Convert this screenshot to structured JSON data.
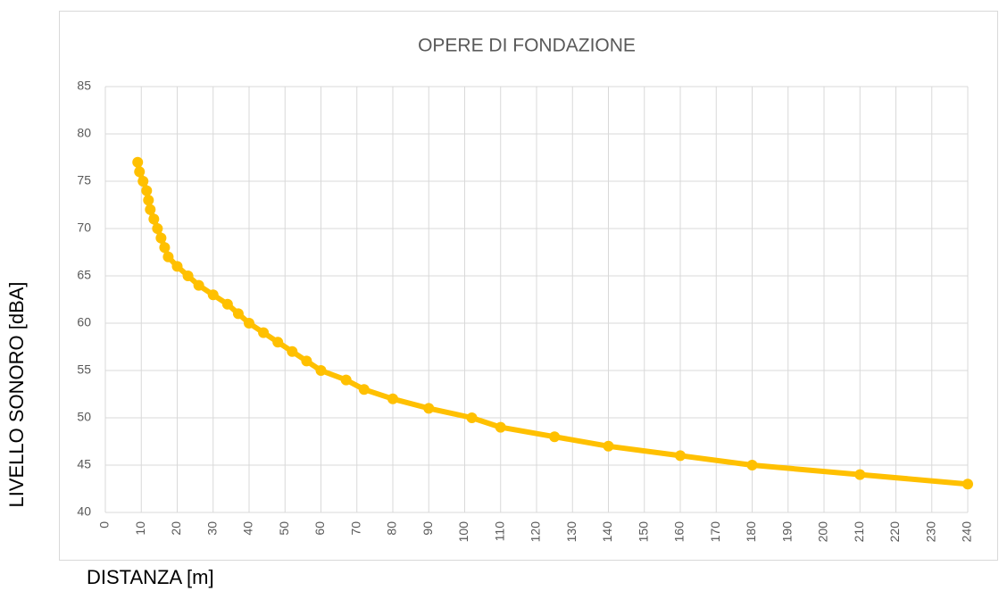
{
  "chart_data": {
    "type": "line",
    "title": "OPERE DI FONDAZIONE",
    "x_label": "DISTANZA [m]",
    "y_label": "LIVELLO SONORO [dBA]",
    "x": [
      9,
      9.5,
      10.5,
      11.5,
      12,
      12.5,
      13.5,
      14.5,
      15.5,
      16.5,
      17.5,
      20,
      23,
      26,
      30,
      34,
      37,
      40,
      44,
      48,
      52,
      56,
      60,
      67,
      72,
      80,
      90,
      102,
      110,
      125,
      140,
      160,
      180,
      210,
      240
    ],
    "values": [
      77,
      76,
      75,
      74,
      73,
      72,
      71,
      70,
      69,
      68,
      67,
      66,
      65,
      64,
      63,
      62,
      61,
      60,
      59,
      58,
      57,
      56,
      55,
      54,
      53,
      52,
      51,
      50,
      49,
      48,
      47,
      46,
      45,
      44,
      43
    ],
    "color": "#FFC000",
    "xlim": [
      0,
      240
    ],
    "xticks": [
      0,
      10,
      20,
      30,
      40,
      50,
      60,
      70,
      80,
      90,
      100,
      110,
      120,
      130,
      140,
      150,
      160,
      170,
      180,
      190,
      200,
      210,
      220,
      230,
      240
    ],
    "ylim": [
      40,
      85
    ],
    "yticks": [
      40,
      45,
      50,
      55,
      60,
      65,
      70,
      75,
      80,
      85
    ],
    "grid": true
  }
}
